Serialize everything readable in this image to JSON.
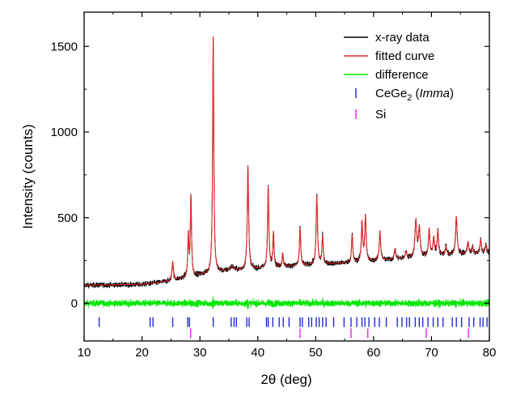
{
  "chart_data": {
    "type": "line",
    "title": "",
    "xlabel": "2θ (deg)",
    "ylabel": "Intensity (counts)",
    "xlim": [
      10,
      80
    ],
    "ylim": [
      -220,
      1700
    ],
    "xticks": [
      10,
      20,
      30,
      40,
      50,
      60,
      70,
      80
    ],
    "yticks": [
      0,
      500,
      1000,
      1500
    ],
    "legend_position": "top-right",
    "legend": [
      {
        "key": "xray",
        "label": "x-ray data",
        "marker": "line",
        "color": "#000000"
      },
      {
        "key": "fit",
        "label": "fitted curve",
        "marker": "line",
        "color": "#e8262a"
      },
      {
        "key": "diff",
        "label": "difference",
        "marker": "line",
        "color": "#00e600"
      },
      {
        "key": "cege2",
        "label_main": "CeGe",
        "label_sub": "2",
        "label_paren_open": " (",
        "label_italic": "Imma",
        "label_paren_close": ")",
        "marker": "tick",
        "color": "#1f2ad8"
      },
      {
        "key": "si",
        "label": "Si",
        "marker": "tick",
        "color": "#ee22ee"
      }
    ],
    "series": [
      {
        "name": "fitted curve",
        "color": "#e8262a",
        "background": [
          [
            10,
            105
          ],
          [
            20,
            110
          ],
          [
            25,
            130
          ],
          [
            27,
            145
          ],
          [
            30,
            165
          ],
          [
            33,
            180
          ],
          [
            36,
            190
          ],
          [
            40,
            200
          ],
          [
            45,
            215
          ],
          [
            50,
            225
          ],
          [
            55,
            235
          ],
          [
            60,
            245
          ],
          [
            65,
            260
          ],
          [
            70,
            275
          ],
          [
            75,
            285
          ],
          [
            80,
            290
          ]
        ],
        "peaks": [
          {
            "x": 25.3,
            "height": 110,
            "width": 0.14
          },
          {
            "x": 28.0,
            "height": 240,
            "width": 0.11
          },
          {
            "x": 28.45,
            "height": 470,
            "width": 0.12
          },
          {
            "x": 32.3,
            "height": 1380,
            "width": 0.12
          },
          {
            "x": 35.5,
            "height": 25,
            "width": 0.4
          },
          {
            "x": 38.3,
            "height": 600,
            "width": 0.14
          },
          {
            "x": 41.8,
            "height": 470,
            "width": 0.13
          },
          {
            "x": 42.7,
            "height": 200,
            "width": 0.13
          },
          {
            "x": 44.3,
            "height": 75,
            "width": 0.13
          },
          {
            "x": 47.3,
            "height": 220,
            "width": 0.13
          },
          {
            "x": 50.2,
            "height": 400,
            "width": 0.14
          },
          {
            "x": 51.2,
            "height": 160,
            "width": 0.13
          },
          {
            "x": 56.3,
            "height": 160,
            "width": 0.13
          },
          {
            "x": 58.0,
            "height": 230,
            "width": 0.14
          },
          {
            "x": 58.6,
            "height": 260,
            "width": 0.14
          },
          {
            "x": 61.1,
            "height": 170,
            "width": 0.15
          },
          {
            "x": 63.7,
            "height": 60,
            "width": 0.15
          },
          {
            "x": 65.6,
            "height": 40,
            "width": 0.15
          },
          {
            "x": 67.3,
            "height": 210,
            "width": 0.18
          },
          {
            "x": 67.9,
            "height": 160,
            "width": 0.18
          },
          {
            "x": 69.6,
            "height": 150,
            "width": 0.15
          },
          {
            "x": 70.4,
            "height": 100,
            "width": 0.15
          },
          {
            "x": 71.1,
            "height": 140,
            "width": 0.15
          },
          {
            "x": 72.5,
            "height": 50,
            "width": 0.15
          },
          {
            "x": 74.3,
            "height": 220,
            "width": 0.16
          },
          {
            "x": 76.3,
            "height": 70,
            "width": 0.15
          },
          {
            "x": 77.1,
            "height": 40,
            "width": 0.15
          },
          {
            "x": 78.5,
            "height": 80,
            "width": 0.16
          },
          {
            "x": 79.4,
            "height": 50,
            "width": 0.15
          }
        ]
      },
      {
        "name": "x-ray data",
        "color": "#000000",
        "noise_amplitude": 14,
        "step": 0.02
      },
      {
        "name": "difference",
        "color": "#00e600",
        "baseline": 0,
        "noise_amplitude": 18,
        "step": 0.02
      }
    ],
    "reflection_ticks": [
      {
        "phase": "CeGe2 (Imma)",
        "color": "#1f2ad8",
        "y": -110,
        "positions": [
          12.6,
          21.4,
          21.9,
          25.3,
          27.9,
          28.2,
          32.3,
          35.4,
          35.9,
          36.3,
          38.1,
          38.5,
          41.5,
          41.8,
          42.6,
          43.7,
          44.4,
          45.4,
          47.3,
          47.7,
          48.8,
          49.3,
          50.1,
          50.6,
          51.2,
          51.8,
          53.1,
          54.9,
          56.1,
          57.1,
          58.0,
          58.5,
          59.2,
          60.2,
          61.0,
          62.2,
          64.1,
          64.9,
          65.7,
          66.2,
          67.2,
          67.9,
          68.5,
          69.4,
          70.3,
          71.1,
          72.0,
          73.6,
          74.3,
          75.2,
          76.5,
          77.3,
          78.4,
          78.9,
          79.6
        ]
      },
      {
        "phase": "Si",
        "color": "#ee22ee",
        "y": -175,
        "positions": [
          28.4,
          47.3,
          56.1,
          59.0,
          69.1,
          76.4
        ]
      }
    ]
  }
}
